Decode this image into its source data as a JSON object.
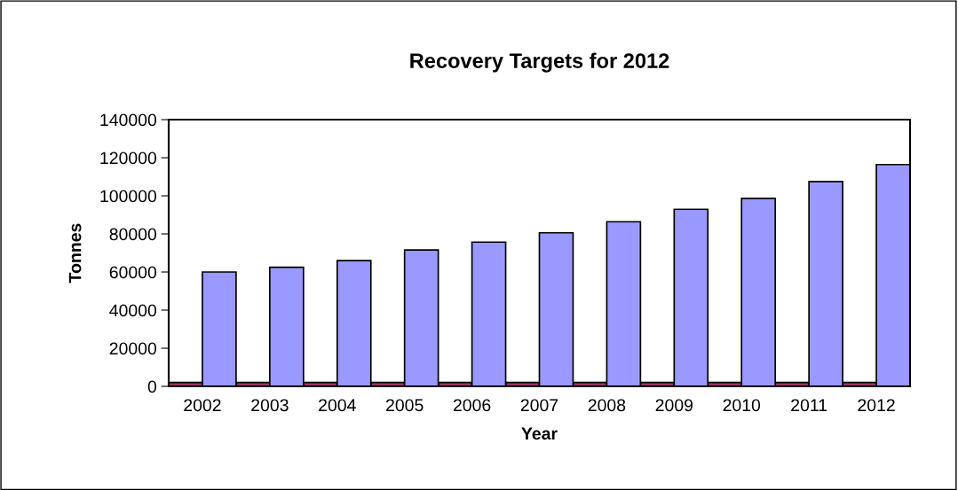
{
  "chart_data": {
    "type": "bar",
    "title": "Recovery Targets for 2012",
    "xlabel": "Year",
    "ylabel": "Tonnes",
    "categories": [
      "2002",
      "2003",
      "2004",
      "2005",
      "2006",
      "2007",
      "2008",
      "2009",
      "2010",
      "2011",
      "2012"
    ],
    "series": [
      {
        "color": "#993366",
        "values": [
          2000,
          2000,
          2000,
          2000,
          2000,
          2000,
          2000,
          2000,
          2000,
          2000,
          2000
        ]
      },
      {
        "color": "#9999ff",
        "values": [
          60000,
          62500,
          66000,
          71600,
          75700,
          80600,
          86400,
          92900,
          98700,
          107500,
          116400
        ]
      }
    ],
    "ylim": [
      0,
      140000
    ],
    "yticks": [
      0,
      20000,
      40000,
      60000,
      80000,
      100000,
      120000,
      140000
    ],
    "grid": false,
    "legend": false
  }
}
